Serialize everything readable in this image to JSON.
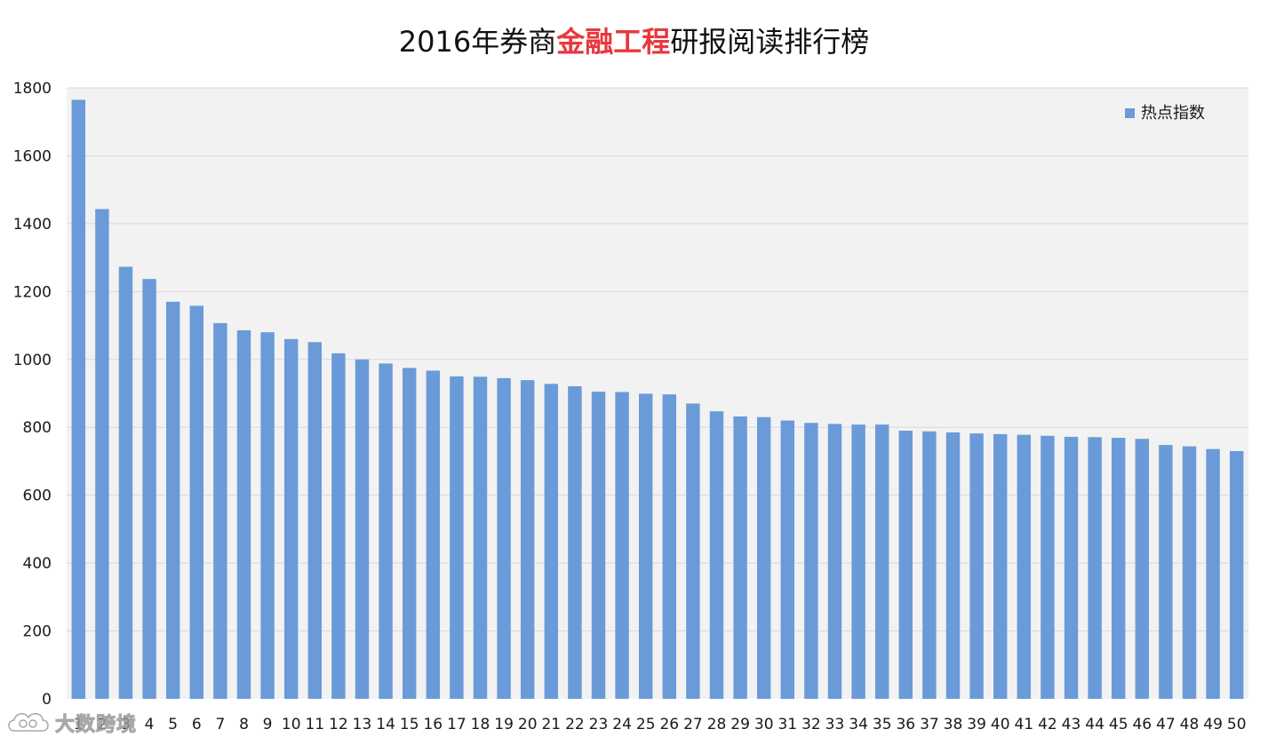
{
  "chart_data": {
    "type": "bar",
    "title_parts": [
      "2016年券商",
      "金融工程",
      "研报阅读排行榜"
    ],
    "title_highlight_color": "#e8383d",
    "bar_color": "#6a9bd8",
    "plot_background": "#f2f2f2",
    "gridline_color": "#d9d9d9",
    "legend_position": "top-right",
    "grid": true,
    "ylim": [
      0,
      1800
    ],
    "yticks": [
      0,
      200,
      400,
      600,
      800,
      1000,
      1200,
      1400,
      1600,
      1800
    ],
    "xlabel": "",
    "ylabel": "",
    "categories": [
      "1",
      "2",
      "3",
      "4",
      "5",
      "6",
      "7",
      "8",
      "9",
      "10",
      "11",
      "12",
      "13",
      "14",
      "15",
      "16",
      "17",
      "18",
      "19",
      "20",
      "21",
      "22",
      "23",
      "24",
      "25",
      "26",
      "27",
      "28",
      "29",
      "30",
      "31",
      "32",
      "33",
      "34",
      "35",
      "36",
      "37",
      "38",
      "39",
      "40",
      "41",
      "42",
      "43",
      "44",
      "45",
      "46",
      "47",
      "48",
      "49",
      "50"
    ],
    "series": [
      {
        "name": "热点指数",
        "values": [
          1765,
          1443,
          1273,
          1237,
          1170,
          1158,
          1107,
          1086,
          1080,
          1060,
          1051,
          1018,
          1000,
          988,
          975,
          967,
          950,
          949,
          945,
          939,
          928,
          921,
          905,
          904,
          899,
          897,
          870,
          847,
          832,
          830,
          820,
          813,
          810,
          808,
          808,
          790,
          788,
          785,
          782,
          780,
          778,
          775,
          772,
          771,
          769,
          766,
          748,
          744,
          736,
          730
        ]
      }
    ]
  },
  "watermark": {
    "logo_icon": "cloud-logo-icon",
    "text": "大数跨境"
  }
}
